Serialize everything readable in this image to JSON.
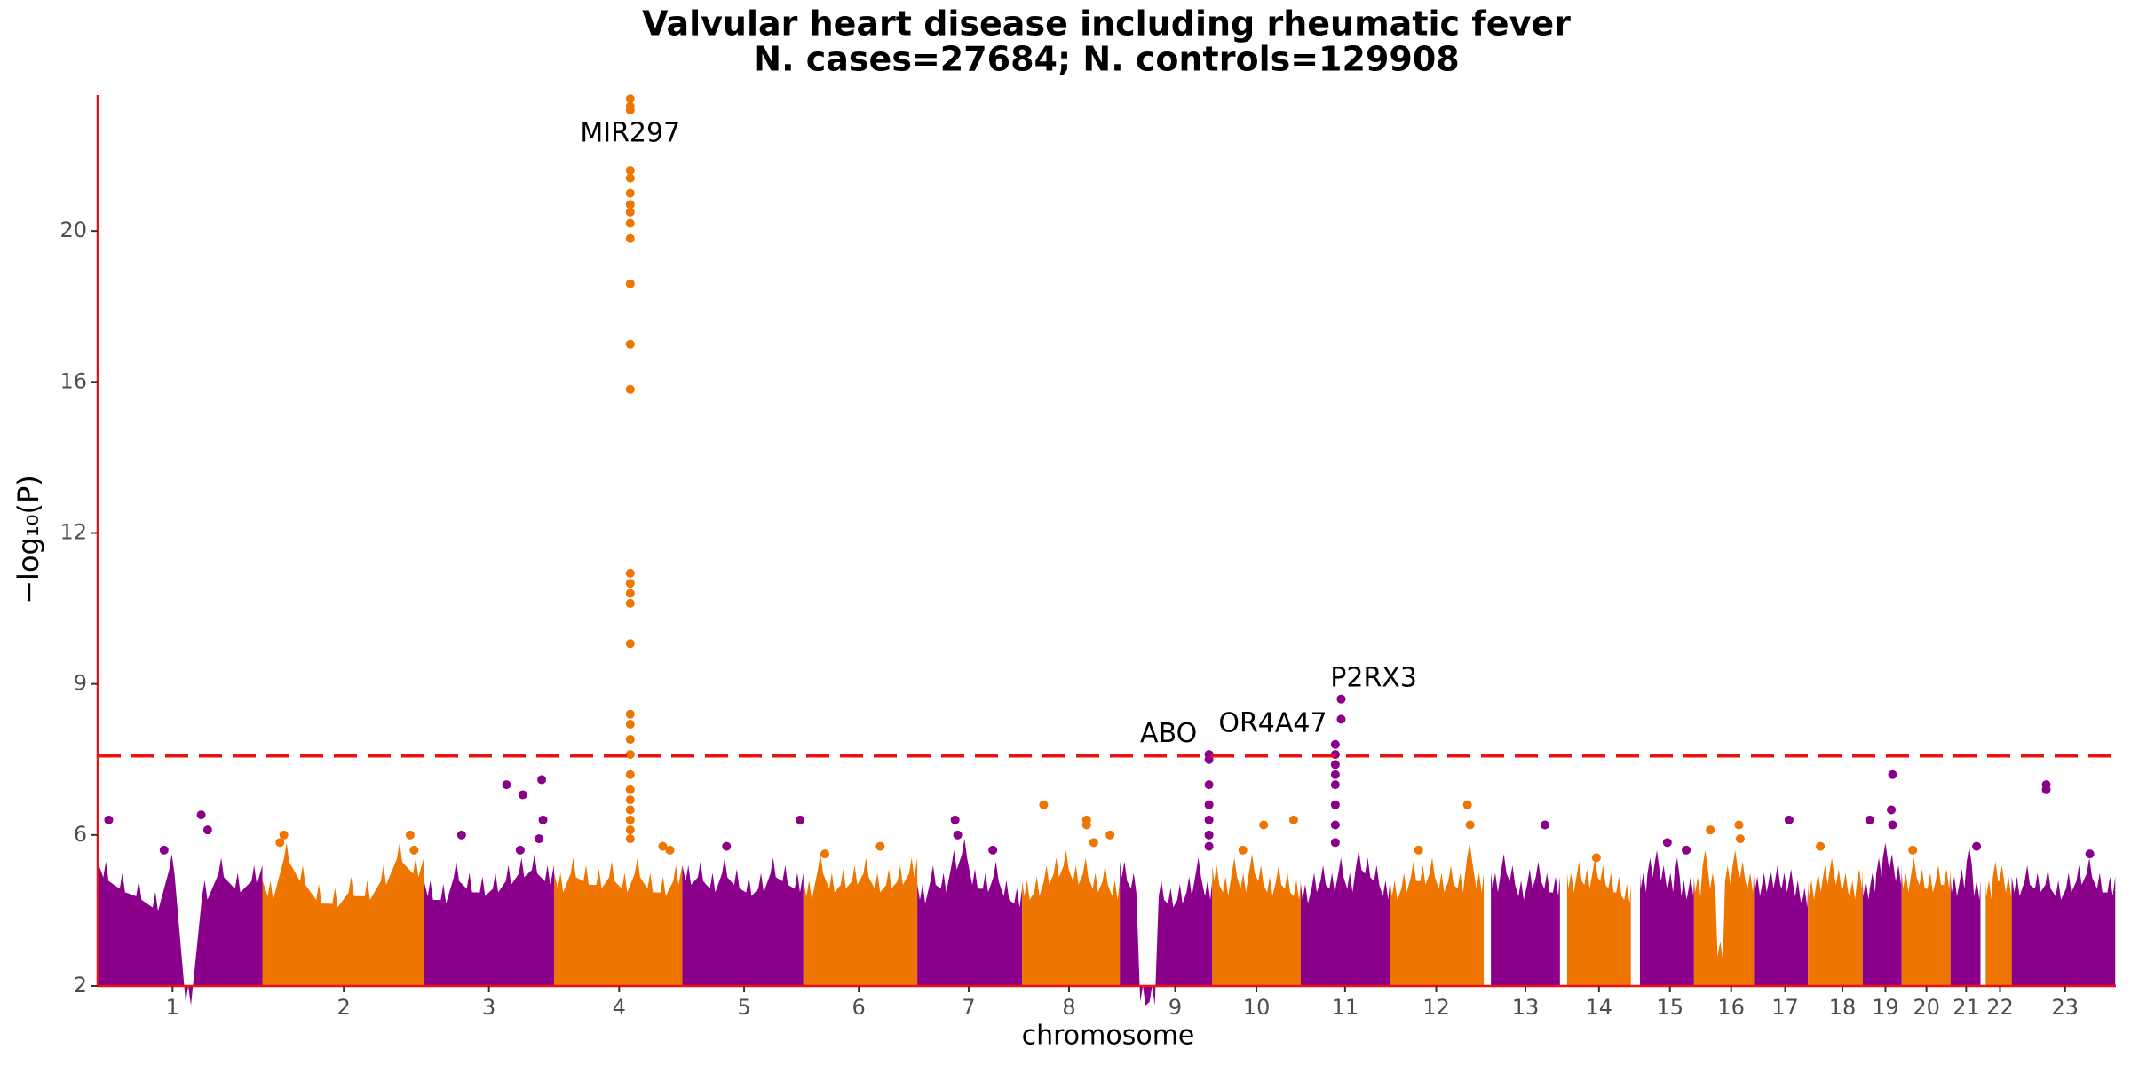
{
  "chart_data": {
    "type": "manhattan",
    "title": "Valvular heart disease including rheumatic fever",
    "subtitle": "N. cases=27684; N. controls=129908",
    "xlabel": "chromosome",
    "ylabel": "−log₁₀(P)",
    "xlim": [
      0,
      3100
    ],
    "ylim": [
      2,
      23.6
    ],
    "yticks": [
      2,
      6,
      9,
      12,
      16,
      20
    ],
    "xticks": [
      {
        "value": 115,
        "label": "1"
      },
      {
        "value": 378,
        "label": "2"
      },
      {
        "value": 601,
        "label": "3"
      },
      {
        "value": 801,
        "label": "4"
      },
      {
        "value": 993,
        "label": "5"
      },
      {
        "value": 1169,
        "label": "6"
      },
      {
        "value": 1338,
        "label": "7"
      },
      {
        "value": 1492,
        "label": "8"
      },
      {
        "value": 1655,
        "label": "9"
      },
      {
        "value": 1780,
        "label": "10"
      },
      {
        "value": 1916,
        "label": "11"
      },
      {
        "value": 2056,
        "label": "12"
      },
      {
        "value": 2193,
        "label": "13"
      },
      {
        "value": 2306,
        "label": "14"
      },
      {
        "value": 2415,
        "label": "15"
      },
      {
        "value": 2509,
        "label": "16"
      },
      {
        "value": 2592,
        "label": "17"
      },
      {
        "value": 2680,
        "label": "18"
      },
      {
        "value": 2746,
        "label": "19"
      },
      {
        "value": 2809,
        "label": "20"
      },
      {
        "value": 2870,
        "label": "21"
      },
      {
        "value": 2922,
        "label": "22"
      },
      {
        "value": 3022,
        "label": "23"
      }
    ],
    "threshold": 7.57,
    "threshold_color": "#ee1111",
    "axis_color": "#ee1111",
    "chromosomes": [
      {
        "start": 0,
        "end": 253,
        "color": "#8b008b",
        "envelope": [
          5.3,
          5.0,
          4.8,
          4.5,
          5.5,
          2.0,
          4.8,
          5.4,
          5.0,
          5.2
        ]
      },
      {
        "start": 253,
        "end": 501,
        "color": "#ee7600",
        "envelope": [
          4.8,
          5.8,
          5.2,
          4.7,
          4.6,
          4.9,
          4.8,
          5.2,
          5.8,
          5.4
        ]
      },
      {
        "start": 501,
        "end": 701,
        "color": "#8b008b",
        "envelope": [
          4.8,
          4.7,
          5.3,
          5.0,
          4.9,
          5.0,
          5.2,
          5.4,
          5.5,
          5.2
        ]
      },
      {
        "start": 701,
        "end": 898,
        "color": "#ee7600",
        "envelope": [
          5.0,
          5.4,
          5.2,
          5.1,
          5.3,
          5.0,
          5.4,
          5.0,
          4.9,
          5.2
        ]
      },
      {
        "start": 898,
        "end": 1084,
        "color": "#8b008b",
        "envelope": [
          5.2,
          5.3,
          5.0,
          5.4,
          5.1,
          4.9,
          5.0,
          5.4,
          5.2,
          5.0
        ]
      },
      {
        "start": 1084,
        "end": 1259,
        "color": "#ee7600",
        "envelope": [
          4.8,
          5.5,
          5.0,
          5.1,
          5.2,
          5.4,
          5.0,
          5.1,
          5.2,
          5.4
        ]
      },
      {
        "start": 1259,
        "end": 1420,
        "color": "#8b008b",
        "envelope": [
          4.7,
          5.2,
          5.0,
          5.6,
          5.9,
          5.1,
          5.0,
          5.3,
          4.8,
          4.6
        ]
      },
      {
        "start": 1420,
        "end": 1570,
        "color": "#ee7600",
        "envelope": [
          4.8,
          4.9,
          5.2,
          5.4,
          5.6,
          5.2,
          5.4,
          5.0,
          5.2,
          4.8
        ]
      },
      {
        "start": 1570,
        "end": 1712,
        "color": "#8b008b",
        "envelope": [
          5.3,
          5.0,
          2.0,
          2.0,
          4.8,
          4.6,
          4.7,
          4.9,
          5.4,
          4.8
        ]
      },
      {
        "start": 1712,
        "end": 1848,
        "color": "#ee7600",
        "envelope": [
          5.2,
          4.9,
          5.4,
          5.0,
          5.5,
          5.2,
          4.9,
          5.2,
          5.0,
          4.8
        ]
      },
      {
        "start": 1848,
        "end": 1985,
        "color": "#8b008b",
        "envelope": [
          4.7,
          5.0,
          5.2,
          5.0,
          5.4,
          5.0,
          5.6,
          5.4,
          5.2,
          4.8
        ]
      },
      {
        "start": 1985,
        "end": 2129,
        "color": "#ee7600",
        "envelope": [
          4.8,
          5.0,
          5.3,
          5.2,
          5.4,
          5.0,
          5.2,
          5.0,
          5.8,
          5.0
        ]
      },
      {
        "start": 2140,
        "end": 2246,
        "color": "#8b008b",
        "envelope": [
          5.0,
          5.5,
          5.2,
          4.8,
          5.1,
          5.3,
          5.0,
          4.9
        ]
      },
      {
        "start": 2257,
        "end": 2355,
        "color": "#ee7600",
        "envelope": [
          5.0,
          5.3,
          5.1,
          5.4,
          5.2,
          5.0,
          4.9,
          4.7
        ]
      },
      {
        "start": 2369,
        "end": 2452,
        "color": "#8b008b",
        "envelope": [
          5.0,
          5.4,
          5.6,
          5.2,
          5.0,
          5.4,
          4.8,
          4.9
        ]
      },
      {
        "start": 2452,
        "end": 2544,
        "color": "#ee7600",
        "envelope": [
          4.9,
          5.6,
          5.0,
          3.2,
          5.2,
          5.6,
          5.3,
          5.0
        ]
      },
      {
        "start": 2544,
        "end": 2627,
        "color": "#8b008b",
        "envelope": [
          4.9,
          5.0,
          5.1,
          5.2,
          5.0,
          5.1,
          4.8,
          4.6
        ]
      },
      {
        "start": 2627,
        "end": 2711,
        "color": "#ee7600",
        "envelope": [
          4.8,
          5.0,
          5.2,
          5.4,
          5.1,
          5.0,
          4.8,
          5.1
        ]
      },
      {
        "start": 2711,
        "end": 2771,
        "color": "#8b008b",
        "envelope": [
          4.8,
          5.0,
          5.4,
          5.8,
          5.5,
          5.2
        ]
      },
      {
        "start": 2771,
        "end": 2846,
        "color": "#ee7600",
        "envelope": [
          5.0,
          5.4,
          5.1,
          5.0,
          5.2,
          5.1
        ]
      },
      {
        "start": 2846,
        "end": 2892,
        "color": "#8b008b",
        "envelope": [
          4.9,
          5.1,
          5.7,
          4.8
        ]
      },
      {
        "start": 2900,
        "end": 2940,
        "color": "#ee7600",
        "envelope": [
          4.8,
          5.3,
          5.2,
          4.9
        ]
      },
      {
        "start": 2940,
        "end": 3099,
        "color": "#8b008b",
        "envelope": [
          4.9,
          5.2,
          5.0,
          5.1,
          4.8,
          5.0,
          5.2,
          5.4,
          5.0,
          4.9
        ]
      }
    ],
    "points": {
      "x": [
        17,
        102,
        159,
        169,
        286,
        280,
        480,
        486,
        559,
        628,
        653,
        682,
        684,
        678,
        649,
        818,
        818,
        818,
        818,
        818,
        818,
        818,
        818,
        818,
        818,
        818,
        818,
        818,
        818,
        818,
        818,
        818,
        818,
        818,
        818,
        818,
        818,
        818,
        818,
        818,
        818,
        818,
        818,
        818,
        868,
        879,
        966,
        1079,
        1117,
        1202,
        1317,
        1321,
        1375,
        1453,
        1519,
        1519,
        1555,
        1530,
        1707,
        1707,
        1707,
        1707,
        1707,
        1707,
        1707,
        1791,
        1837,
        1759,
        1910,
        1910,
        1901,
        1901,
        1901,
        1901,
        1901,
        1901,
        1901,
        1901,
        2104,
        2108,
        2029,
        2223,
        2302,
        2411,
        2440,
        2477,
        2521,
        2523,
        2598,
        2646,
        2757,
        2755,
        2722,
        2757,
        2788,
        2886,
        2993,
        2993,
        3060
      ],
      "y": [
        6.3,
        5.6,
        6.4,
        6.1,
        6.0,
        5.8,
        6.0,
        5.6,
        6.0,
        7.0,
        6.8,
        7.1,
        6.3,
        5.9,
        5.6,
        23.5,
        23.3,
        23.2,
        21.6,
        21.4,
        21.0,
        20.7,
        20.5,
        20.2,
        19.8,
        18.6,
        17.0,
        15.8,
        11.2,
        11.0,
        10.8,
        10.6,
        9.8,
        8.4,
        8.2,
        7.9,
        7.6,
        7.2,
        6.9,
        6.7,
        6.5,
        6.3,
        6.1,
        5.9,
        5.7,
        5.6,
        5.7,
        6.3,
        5.5,
        5.7,
        6.3,
        6.0,
        5.6,
        6.6,
        6.3,
        6.2,
        6.0,
        5.8,
        7.6,
        7.5,
        7.0,
        6.6,
        6.3,
        6.0,
        5.7,
        6.2,
        6.3,
        5.6,
        8.7,
        8.3,
        7.8,
        7.6,
        7.4,
        7.2,
        7.0,
        6.6,
        6.2,
        5.8,
        6.6,
        6.2,
        5.6,
        6.2,
        5.4,
        5.8,
        5.6,
        6.1,
        6.2,
        5.9,
        6.3,
        5.7,
        7.2,
        6.5,
        6.3,
        6.2,
        5.6,
        5.7,
        6.9,
        7.0,
        5.5
      ]
    },
    "annotations": [
      {
        "text": "MIR297",
        "x": 818,
        "y": 22.56
      },
      {
        "text": "ABO",
        "x": 1645,
        "y": 8.0
      },
      {
        "text": "OR4A47",
        "x": 1805,
        "y": 8.2
      },
      {
        "text": "P2RX3",
        "x": 1960,
        "y": 9.1
      }
    ]
  }
}
